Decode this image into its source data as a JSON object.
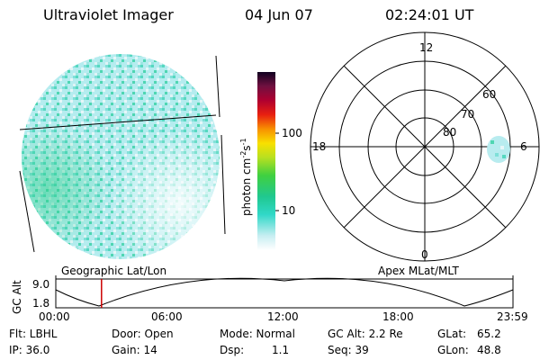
{
  "header": {
    "title": "Ultraviolet Imager",
    "date": "04 Jun 07",
    "time": "02:24:01 UT"
  },
  "colorbar": {
    "label": "photon cm-2s-1",
    "ticks": [
      "100",
      "10"
    ]
  },
  "polar_plot": {
    "mlt_labels": [
      "12",
      "18",
      "6",
      "0"
    ],
    "lat_labels": [
      "60",
      "70",
      "80"
    ]
  },
  "timeline": {
    "axis_label": "GC Alt",
    "y_ticks": [
      "9.0",
      "1.8"
    ],
    "left_label": "Geographic Lat/Lon",
    "right_label": "Apex MLat/MLT",
    "time_ticks": [
      "00:00",
      "06:00",
      "12:00",
      "18:00",
      "23:59"
    ],
    "current_time_fraction": 0.1
  },
  "status": {
    "flt": "Flt: LBHL",
    "ip": "IP: 36.0",
    "door": "Door: Open",
    "gain": "Gain: 14",
    "mode": "Mode: Normal",
    "dsp": "Dsp:",
    "dsp_val": "1.1",
    "gc_alt": "GC Alt: 2.2 Re",
    "seq": "Seq: 39",
    "glat": "GLat:",
    "glat_val": "65.2",
    "glon": "GLon:",
    "glon_val": "48.8"
  },
  "colors": {
    "disk_base": "#b7eef0",
    "disk_green": "#3fd9a0",
    "disk_light": "#e0f4f8",
    "marker": "#cc0000"
  }
}
